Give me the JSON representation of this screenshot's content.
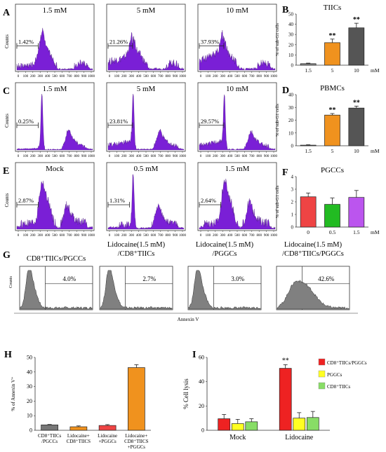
{
  "colors": {
    "histogram_fill": "#7a1fd6",
    "bar_gray": "#8c8c8c",
    "bar_orange": "#f0921e",
    "bar_dark": "#555555",
    "bar_red": "#ef4444",
    "bar_green": "#22bb22",
    "bar_violet": "#bb55ee",
    "flow_fill": "#808080",
    "legend_red": "#ee2222",
    "legend_yellow": "#ffff22",
    "legend_green": "#88dd66"
  },
  "panels": {
    "A": {
      "letter": "A",
      "ylabel": "Counts",
      "x_ticks": [
        "0",
        "100",
        "200",
        "300",
        "400",
        "500",
        "600",
        "700",
        "800",
        "900",
        "1000"
      ],
      "histograms": [
        {
          "title": "1.5 mM",
          "gate_pct": "1.42%",
          "profile": "A0"
        },
        {
          "title": "5 mM",
          "gate_pct": "21.26%",
          "profile": "A1"
        },
        {
          "title": "10 mM",
          "gate_pct": "37.93%",
          "profile": "A2"
        }
      ]
    },
    "C": {
      "letter": "C",
      "ylabel": "Counts",
      "x_ticks": [
        "0",
        "100",
        "200",
        "300",
        "400",
        "500",
        "600",
        "700",
        "800",
        "900",
        "1000"
      ],
      "histograms": [
        {
          "title": "1.5 mM",
          "gate_pct": "0.25%",
          "profile": "C0"
        },
        {
          "title": "5 mM",
          "gate_pct": "23.81%",
          "profile": "C1"
        },
        {
          "title": "10 mM",
          "gate_pct": "29.57%",
          "profile": "C2"
        }
      ]
    },
    "E": {
      "letter": "E",
      "ylabel": "Counts",
      "x_ticks": [
        "0",
        "100",
        "200",
        "300",
        "400",
        "500",
        "600",
        "700",
        "800",
        "900",
        "1000"
      ],
      "histograms": [
        {
          "title": "Mock",
          "gate_pct": "2.87%",
          "profile": "E0"
        },
        {
          "title": "0.5 mM",
          "gate_pct": "1.31%",
          "profile": "E1"
        },
        {
          "title": "1.5 mM",
          "gate_pct": "2.64%",
          "profile": "E2"
        }
      ]
    },
    "G": {
      "letter": "G",
      "ylabel": "Counts",
      "xlabel": "Annexin V",
      "plots": [
        {
          "title_lines": [
            "CD8⁺TIICs/PGCCs"
          ],
          "pct": "4.0%"
        },
        {
          "title_lines": [
            "Lidocaine(1.5 mM)",
            "/CD8⁺TIICs"
          ],
          "pct": "2.7%"
        },
        {
          "title_lines": [
            "Lidocaine(1.5 mM)",
            "/PGGCs"
          ],
          "pct": "3.0%"
        },
        {
          "title_lines": [
            "Lidocaine(1.5 mM)",
            "/CD8⁺TIICs/PGGCs"
          ],
          "pct": "42.6%"
        }
      ]
    }
  },
  "chart_data": [
    {
      "panel": "B",
      "type": "bar",
      "title": "TIICs",
      "ylabel": "% of sub-G1 cells",
      "categories": [
        "1.5",
        "5",
        "10"
      ],
      "x_unit": "mM",
      "values": [
        1.5,
        22,
        36.5
      ],
      "errors": [
        0.5,
        3.5,
        4.5
      ],
      "significance": [
        "",
        "**",
        "**"
      ],
      "ylim": [
        0,
        50
      ],
      "yticks": [
        "0",
        "10",
        "20",
        "30",
        "40",
        "50"
      ]
    },
    {
      "panel": "D",
      "type": "bar",
      "title": "PBMCs",
      "ylabel": "% of sub-G1 cells",
      "categories": [
        "1.5",
        "5",
        "10"
      ],
      "x_unit": "mM",
      "values": [
        0.5,
        24,
        29.5
      ],
      "errors": [
        0.3,
        1.2,
        1.5
      ],
      "significance": [
        "",
        "**",
        "**"
      ],
      "ylim": [
        0,
        40
      ],
      "yticks": [
        "0",
        "10",
        "20",
        "30",
        "40"
      ]
    },
    {
      "panel": "F",
      "type": "bar",
      "title": "PGCCs",
      "ylabel": "% of sub-G1 cells",
      "categories": [
        "0",
        "0.5",
        "1.5"
      ],
      "x_unit": "mM",
      "values": [
        2.4,
        1.8,
        2.35
      ],
      "errors": [
        0.3,
        0.5,
        0.55
      ],
      "ylim": [
        0,
        4
      ],
      "yticks": [
        "0",
        "1",
        "2",
        "3",
        "4"
      ]
    },
    {
      "panel": "H",
      "type": "bar",
      "ylabel": "% of Annexin V⁺",
      "categories": [
        [
          "CD8⁺TIICs",
          "/PGCCs"
        ],
        [
          "Lidocaine+",
          "CD8⁺TIICS"
        ],
        [
          "Lidocaine",
          "+PGGCs"
        ],
        [
          "Lidocaine+",
          "CD8⁺TIICS",
          "+PGGCs"
        ]
      ],
      "values": [
        3.7,
        2.4,
        3.3,
        43
      ],
      "errors": [
        0.3,
        0.6,
        0.6,
        2.0
      ],
      "ylim": [
        0,
        50
      ],
      "yticks": [
        "0",
        "10",
        "20",
        "30",
        "40",
        "50"
      ]
    },
    {
      "panel": "I",
      "type": "bar",
      "ylabel": "% Cell lysis",
      "categories": [
        "Mock",
        "Lidocaine"
      ],
      "series": [
        {
          "name": "CD8⁺TIICs/PGGCs",
          "values": [
            9.5,
            51
          ],
          "errors": [
            3.5,
            3
          ]
        },
        {
          "name": "PGGCs",
          "values": [
            5.5,
            10
          ],
          "errors": [
            3.5,
            4.5
          ]
        },
        {
          "name": "CD8⁺TIICs",
          "values": [
            7,
            10.5
          ],
          "errors": [
            2.5,
            5
          ]
        }
      ],
      "significance": [
        "",
        "**"
      ],
      "legend_position": "top-right",
      "ylim": [
        0,
        60
      ],
      "yticks": [
        "0",
        "20",
        "40",
        "60"
      ]
    }
  ]
}
